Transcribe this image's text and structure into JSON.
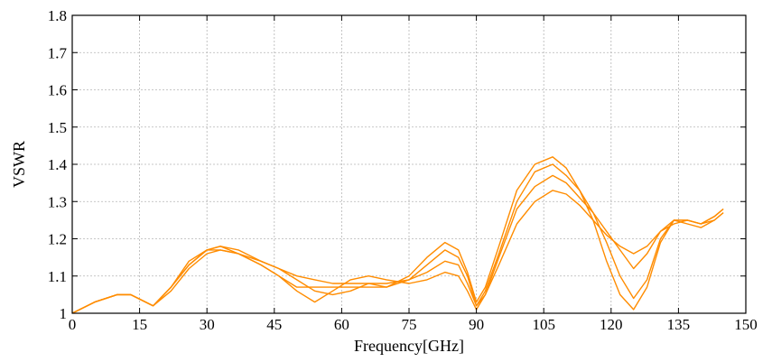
{
  "chart_data": {
    "type": "line",
    "title": "",
    "xlabel": "Frequency[GHz]",
    "ylabel": "VSWR",
    "xlim": [
      0,
      150
    ],
    "ylim": [
      1.0,
      1.8
    ],
    "xticks": [
      0,
      15,
      30,
      45,
      60,
      75,
      90,
      105,
      120,
      135,
      150
    ],
    "yticks": [
      1,
      1.1,
      1.2,
      1.3,
      1.4,
      1.5,
      1.6,
      1.7,
      1.8
    ],
    "xtick_labels": [
      "0",
      "15",
      "30",
      "45",
      "60",
      "75",
      "90",
      "105",
      "120",
      "135",
      "150"
    ],
    "ytick_labels": [
      "1",
      "1.1",
      "1.2",
      "1.3",
      "1.4",
      "1.5",
      "1.6",
      "1.7",
      "1.8"
    ],
    "grid": true,
    "legend": "none",
    "color": "#ff8c00",
    "series": [
      {
        "x": [
          0,
          5,
          10,
          13,
          18,
          22,
          26,
          30,
          33,
          37,
          42,
          46,
          50,
          54,
          58,
          62,
          66,
          70,
          75,
          79,
          83,
          86,
          88,
          90,
          92,
          95,
          99,
          103,
          107,
          110,
          113,
          116,
          119,
          122,
          125,
          128,
          131,
          134,
          137,
          140,
          143,
          145
        ],
        "y": [
          1.0,
          1.03,
          1.05,
          1.05,
          1.02,
          1.06,
          1.12,
          1.16,
          1.17,
          1.16,
          1.13,
          1.1,
          1.06,
          1.03,
          1.06,
          1.09,
          1.1,
          1.09,
          1.08,
          1.09,
          1.11,
          1.1,
          1.06,
          1.01,
          1.05,
          1.13,
          1.24,
          1.3,
          1.33,
          1.32,
          1.29,
          1.25,
          1.21,
          1.18,
          1.16,
          1.18,
          1.22,
          1.24,
          1.25,
          1.24,
          1.25,
          1.27
        ]
      },
      {
        "x": [
          0,
          5,
          10,
          13,
          18,
          22,
          26,
          30,
          33,
          37,
          42,
          46,
          50,
          54,
          58,
          62,
          66,
          70,
          75,
          79,
          83,
          86,
          88,
          90,
          92,
          95,
          99,
          103,
          107,
          110,
          113,
          116,
          119,
          122,
          125,
          128,
          131,
          134,
          137,
          140,
          143,
          145
        ],
        "y": [
          1.0,
          1.03,
          1.05,
          1.05,
          1.02,
          1.07,
          1.13,
          1.17,
          1.18,
          1.17,
          1.14,
          1.12,
          1.09,
          1.06,
          1.05,
          1.06,
          1.08,
          1.08,
          1.09,
          1.11,
          1.14,
          1.13,
          1.08,
          1.02,
          1.05,
          1.15,
          1.28,
          1.34,
          1.37,
          1.35,
          1.31,
          1.27,
          1.22,
          1.17,
          1.12,
          1.16,
          1.22,
          1.25,
          1.24,
          1.23,
          1.25,
          1.27
        ]
      },
      {
        "x": [
          0,
          5,
          10,
          13,
          18,
          22,
          26,
          30,
          33,
          37,
          42,
          46,
          50,
          54,
          58,
          62,
          66,
          70,
          75,
          79,
          83,
          86,
          88,
          90,
          92,
          95,
          99,
          103,
          107,
          110,
          113,
          116,
          119,
          122,
          125,
          128,
          131,
          134,
          137,
          140,
          143,
          145
        ],
        "y": [
          1.0,
          1.03,
          1.05,
          1.05,
          1.02,
          1.07,
          1.13,
          1.17,
          1.17,
          1.16,
          1.13,
          1.1,
          1.07,
          1.07,
          1.07,
          1.07,
          1.07,
          1.07,
          1.09,
          1.13,
          1.17,
          1.15,
          1.1,
          1.02,
          1.06,
          1.16,
          1.3,
          1.38,
          1.4,
          1.37,
          1.33,
          1.27,
          1.19,
          1.1,
          1.04,
          1.09,
          1.2,
          1.25,
          1.25,
          1.24,
          1.26,
          1.28
        ]
      },
      {
        "x": [
          0,
          5,
          10,
          13,
          18,
          22,
          26,
          30,
          33,
          37,
          42,
          46,
          50,
          54,
          58,
          62,
          66,
          70,
          75,
          79,
          83,
          86,
          88,
          90,
          92,
          95,
          99,
          103,
          107,
          110,
          113,
          116,
          119,
          122,
          125,
          128,
          131,
          134,
          137,
          140,
          143,
          145
        ],
        "y": [
          1.0,
          1.03,
          1.05,
          1.05,
          1.02,
          1.07,
          1.14,
          1.17,
          1.18,
          1.16,
          1.14,
          1.12,
          1.1,
          1.09,
          1.08,
          1.08,
          1.08,
          1.07,
          1.1,
          1.15,
          1.19,
          1.17,
          1.11,
          1.03,
          1.07,
          1.18,
          1.33,
          1.4,
          1.42,
          1.39,
          1.33,
          1.25,
          1.14,
          1.05,
          1.01,
          1.07,
          1.19,
          1.25,
          1.25,
          1.24,
          1.26,
          1.28
        ]
      }
    ]
  }
}
